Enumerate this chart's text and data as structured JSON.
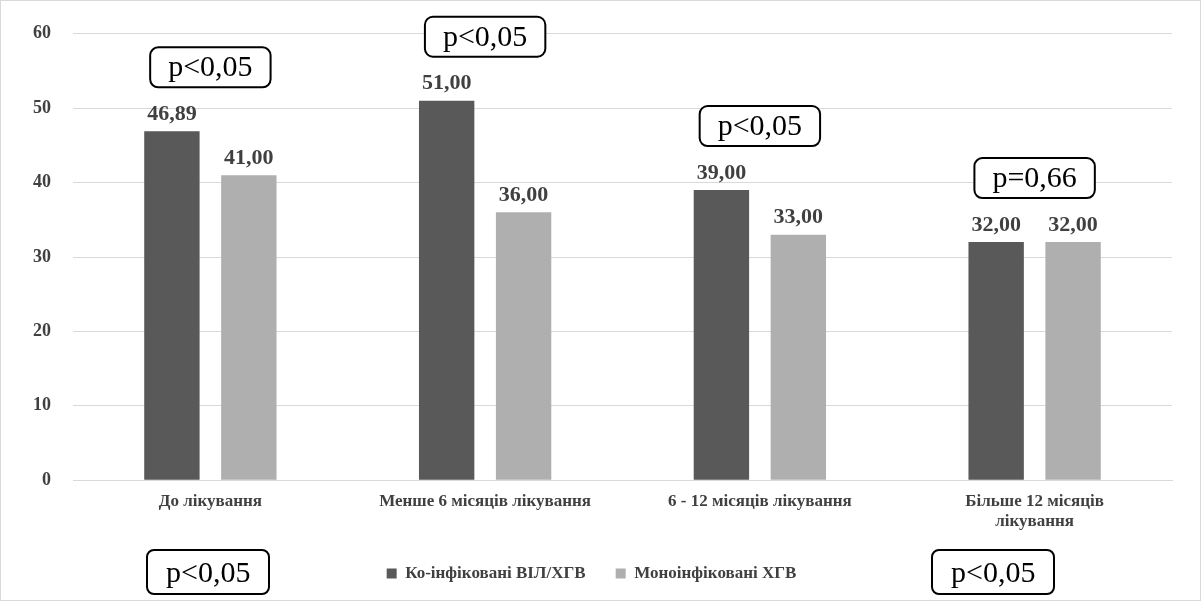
{
  "chart_data": {
    "type": "bar",
    "categories": [
      "До лікування",
      "Менше 6 місяців лікування",
      "6 - 12 місяців лікування",
      "Більше 12 місяців лікування"
    ],
    "series": [
      {
        "name": "Ко-інфіковані ВІЛ/ХГВ",
        "color": "#595959",
        "values": [
          46.89,
          51.0,
          39.0,
          32.0
        ],
        "value_labels": [
          "46,89",
          "51,00",
          "39,00",
          "32,00"
        ]
      },
      {
        "name": "Моноінфіковані ХГВ",
        "color": "#afafaf",
        "values": [
          41.0,
          36.0,
          33.0,
          32.0
        ],
        "value_labels": [
          "41,00",
          "36,00",
          "33,00",
          "32,00"
        ]
      }
    ],
    "ylim": [
      0,
      60
    ],
    "yticks": [
      0,
      10,
      20,
      30,
      40,
      50,
      60
    ],
    "grid": "y",
    "legend": "bottom",
    "annotations": [
      "p<0,05",
      "p<0,05",
      "p<0,05",
      "p=0,66",
      "p<0,05",
      "p<0,05"
    ]
  }
}
